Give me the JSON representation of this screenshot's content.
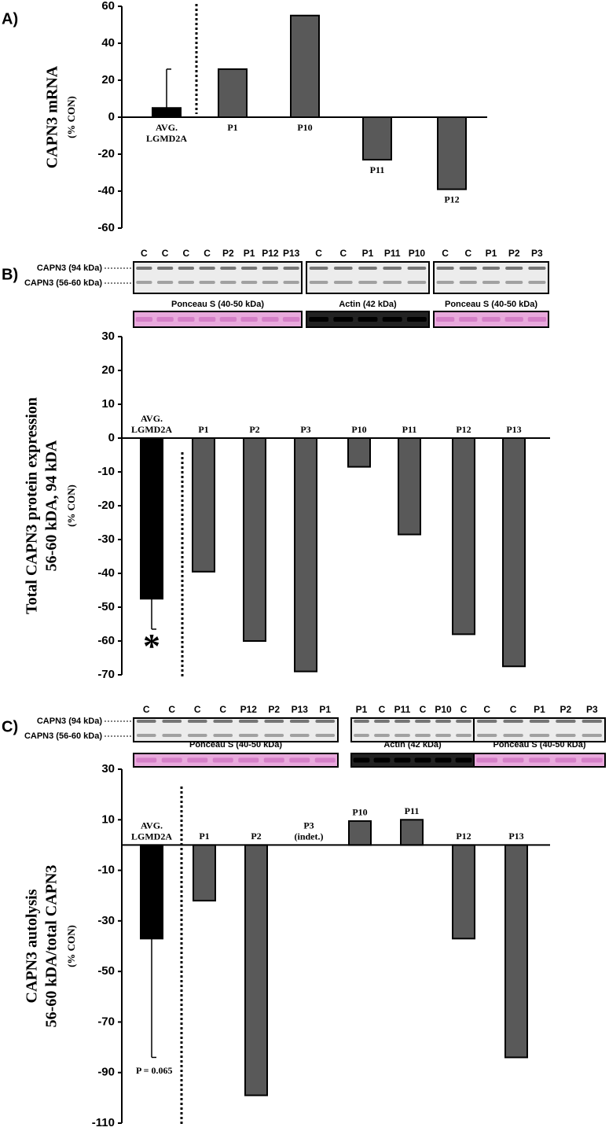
{
  "chart_data": [
    {
      "type": "bar",
      "panel_label": "A)",
      "y_label": [
        "CAPN3 mRNA",
        "(% CON)"
      ],
      "categories": [
        "AVG. LGMD2A",
        "P1",
        "P10",
        "P11",
        "P12"
      ],
      "values": [
        5,
        26,
        55,
        -23,
        -39
      ],
      "errors": [
        21,
        null,
        null,
        null,
        null
      ],
      "colors": [
        "#000000",
        "#595959",
        "#595959",
        "#595959",
        "#595959"
      ],
      "ylim": [
        -60,
        60
      ],
      "yticks": [
        -60,
        -40,
        -20,
        0,
        20,
        40,
        60
      ]
    },
    {
      "type": "bar",
      "panel_label": "B)",
      "y_label": [
        "Total CAPN3 protein expression",
        "56-60 kDA, 94 kDA",
        "(% CON)"
      ],
      "band_labels": [
        "CAPN3 (94 kDa)",
        "CAPN3 (56-60 kDa)"
      ],
      "blots": [
        {
          "lanes": [
            "C",
            "C",
            "C",
            "C",
            "P2",
            "P1",
            "P12",
            "P13"
          ],
          "stain": "Ponceau S (40-50 kDa)"
        },
        {
          "lanes": [
            "C",
            "C",
            "P1",
            "P11",
            "P10"
          ],
          "stain": "Actin (42 kDa)"
        },
        {
          "lanes": [
            "C",
            "C",
            "P1",
            "P2",
            "P3"
          ],
          "stain": "Ponceau S (40-50 kDa)"
        }
      ],
      "categories": [
        "AVG. LGMD2A",
        "P1",
        "P2",
        "P3",
        "P10",
        "P11",
        "P12",
        "P13"
      ],
      "values": [
        -47.5,
        -39.5,
        -60,
        -69,
        -8.5,
        -28.5,
        -58,
        -67.5
      ],
      "errors": [
        9,
        null,
        null,
        null,
        null,
        null,
        null,
        null
      ],
      "colors": [
        "#000000",
        "#595959",
        "#595959",
        "#595959",
        "#595959",
        "#595959",
        "#595959",
        "#595959"
      ],
      "annotation": "*",
      "ylim": [
        -70,
        30
      ],
      "yticks": [
        -70,
        -60,
        -50,
        -40,
        -30,
        -20,
        -10,
        0,
        10,
        20,
        30
      ]
    },
    {
      "type": "bar",
      "panel_label": "C)",
      "y_label": [
        "CAPN3 autolysis",
        "56-60 kDA/total CAPN3",
        "(% CON)"
      ],
      "band_labels": [
        "CAPN3  (94 kDa)",
        "CAPN3 (56-60 kDa)"
      ],
      "blots": [
        {
          "lanes": [
            "C",
            "C",
            "C",
            "C",
            "P12",
            "P2",
            "P13",
            "P1"
          ],
          "stain": "Ponceau S (40-50 kDa)"
        },
        {
          "lanes": [
            "P1",
            "C",
            "P11",
            "C",
            "P10",
            "C"
          ],
          "stain": "Actin (42 kDa)"
        },
        {
          "lanes": [
            "C",
            "C",
            "P1",
            "P2",
            "P3"
          ],
          "stain": "Ponceau S (40-50 kDa)"
        }
      ],
      "categories": [
        "AVG. LGMD2A",
        "P1",
        "P2",
        "P3 (indet.)",
        "P10",
        "P11",
        "P12",
        "P13"
      ],
      "values": [
        -37,
        -22,
        -99,
        null,
        9.5,
        10,
        -37,
        -84
      ],
      "errors": [
        47,
        null,
        null,
        null,
        null,
        null,
        null,
        null
      ],
      "colors": [
        "#000000",
        "#595959",
        "#595959",
        "#595959",
        "#595959",
        "#595959",
        "#595959",
        "#595959"
      ],
      "annotation": "P = 0.065",
      "ylim": [
        -110,
        30
      ],
      "yticks": [
        -110,
        -90,
        -70,
        -50,
        -30,
        -10,
        10,
        30
      ]
    }
  ]
}
